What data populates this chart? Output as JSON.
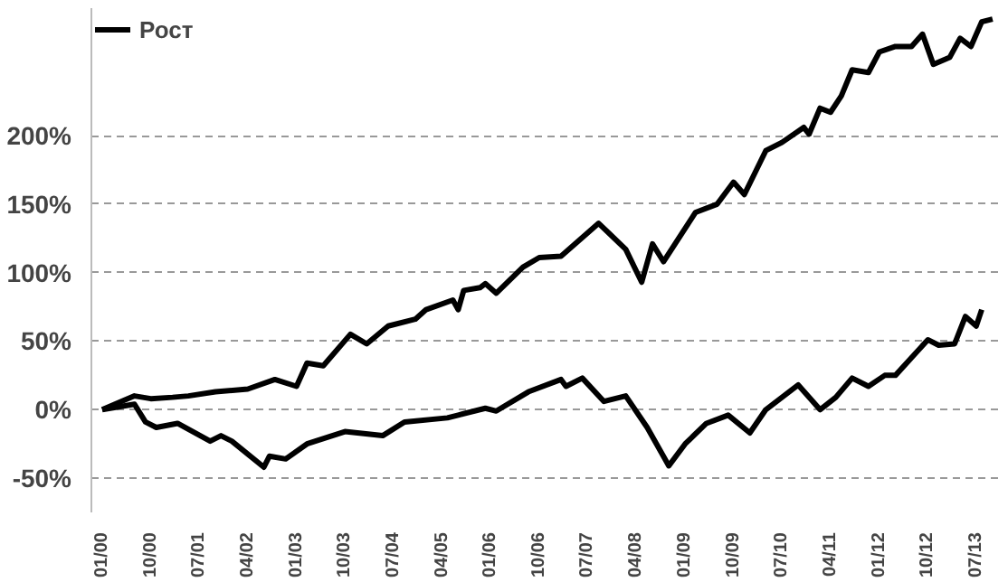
{
  "chart_data": {
    "type": "line",
    "xlim": [
      "1999-11",
      "2013-11"
    ],
    "ylim": [
      -75,
      293
    ],
    "xticks": [
      {
        "value": "2000-01",
        "label": "01/00"
      },
      {
        "value": "2000-10",
        "label": "10/00"
      },
      {
        "value": "2001-07",
        "label": "07/01"
      },
      {
        "value": "2002-04",
        "label": "04/02"
      },
      {
        "value": "2003-01",
        "label": "01/03"
      },
      {
        "value": "2003-10",
        "label": "10/03"
      },
      {
        "value": "2004-07",
        "label": "07/04"
      },
      {
        "value": "2005-04",
        "label": "04/05"
      },
      {
        "value": "2006-01",
        "label": "01/06"
      },
      {
        "value": "2006-10",
        "label": "10/06"
      },
      {
        "value": "2007-07",
        "label": "07/07"
      },
      {
        "value": "2008-04",
        "label": "04/08"
      },
      {
        "value": "2009-01",
        "label": "01/09"
      },
      {
        "value": "2009-10",
        "label": "10/09"
      },
      {
        "value": "2010-07",
        "label": "07/10"
      },
      {
        "value": "2011-04",
        "label": "04/11"
      },
      {
        "value": "2012-01",
        "label": "01/12"
      },
      {
        "value": "2012-10",
        "label": "10/12"
      },
      {
        "value": "2013-07",
        "label": "07/13"
      }
    ],
    "yticks": [
      {
        "value": -50,
        "label": "-50%"
      },
      {
        "value": 0,
        "label": "0%"
      },
      {
        "value": 50,
        "label": "50%"
      },
      {
        "value": 100,
        "label": "100%"
      },
      {
        "value": 150,
        "label": "150%"
      },
      {
        "value": 200,
        "label": "200%"
      }
    ],
    "grid": "y",
    "legend": "top left",
    "line_style": "solid",
    "series": [
      {
        "name": "Рост",
        "color": "#000000",
        "x": [
          "2000-01",
          "2000-07",
          "2000-10",
          "2001-02",
          "2001-05",
          "2001-10",
          "2002-04",
          "2002-09",
          "2003-01",
          "2003-03",
          "2003-06",
          "2003-11",
          "2004-02",
          "2004-06",
          "2004-11",
          "2005-01",
          "2005-06",
          "2005-07",
          "2005-08",
          "2005-11",
          "2005-12",
          "2006-02",
          "2006-07",
          "2006-10",
          "2007-02",
          "2007-09",
          "2008-02",
          "2008-05",
          "2008-07",
          "2008-09",
          "2009-03",
          "2009-07",
          "2009-10",
          "2009-12",
          "2010-04",
          "2010-07",
          "2010-11",
          "2010-12",
          "2011-02",
          "2011-04",
          "2011-06",
          "2011-08",
          "2011-11",
          "2012-01",
          "2012-04",
          "2012-07",
          "2012-09",
          "2012-11",
          "2013-02",
          "2013-04",
          "2013-06",
          "2013-08",
          "2013-10"
        ],
        "values": [
          0,
          10,
          8,
          9,
          10,
          13,
          15,
          22,
          17,
          34,
          32,
          55,
          48,
          61,
          66,
          73,
          80,
          73,
          87,
          89,
          92,
          85,
          104,
          111,
          112,
          136,
          117,
          93,
          121,
          108,
          144,
          150,
          166,
          157,
          189,
          195,
          206,
          201,
          220,
          217,
          229,
          248,
          246,
          261,
          265,
          265,
          274,
          252,
          257,
          271,
          265,
          283,
          285
        ]
      },
      {
        "color": "#000000",
        "x": [
          "2000-01",
          "2000-07",
          "2000-09",
          "2000-11",
          "2001-03",
          "2001-09",
          "2001-11",
          "2002-01",
          "2002-07",
          "2002-08",
          "2002-11",
          "2003-03",
          "2003-10",
          "2004-05",
          "2004-09",
          "2005-05",
          "2005-07",
          "2005-12",
          "2006-02",
          "2006-08",
          "2007-02",
          "2007-03",
          "2007-06",
          "2007-10",
          "2008-02",
          "2008-06",
          "2008-10",
          "2009-01",
          "2009-05",
          "2009-09",
          "2010-01",
          "2010-04",
          "2010-10",
          "2011-02",
          "2011-05",
          "2011-08",
          "2011-11",
          "2012-02",
          "2012-04",
          "2012-10",
          "2012-12",
          "2013-03",
          "2013-05",
          "2013-07",
          "2013-08"
        ],
        "values": [
          0,
          4,
          -9,
          -13,
          -10,
          -23,
          -19,
          -23,
          -42,
          -34,
          -36,
          -25,
          -16,
          -19,
          -9,
          -6,
          -4,
          1,
          -1,
          13,
          22,
          17,
          23,
          6,
          10,
          -13,
          -41,
          -25,
          -10,
          -4,
          -17,
          0,
          18,
          0,
          9,
          23,
          17,
          25,
          25,
          51,
          47,
          48,
          68,
          61,
          73
        ]
      }
    ]
  }
}
